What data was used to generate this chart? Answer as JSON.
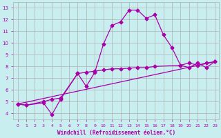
{
  "title": "",
  "xlabel": "Windchill (Refroidissement éolien,°C)",
  "background_color": "#c8eef0",
  "grid_color": "#b0b0b0",
  "line_color": "#aa00aa",
  "xlim": [
    -0.5,
    23.5
  ],
  "ylim": [
    3.5,
    13.5
  ],
  "xticks": [
    0,
    1,
    2,
    3,
    4,
    5,
    6,
    7,
    8,
    9,
    10,
    11,
    12,
    13,
    14,
    15,
    16,
    17,
    18,
    19,
    20,
    21,
    22,
    23
  ],
  "yticks": [
    4,
    5,
    6,
    7,
    8,
    9,
    10,
    11,
    12,
    13
  ],
  "series1_x": [
    0,
    1,
    3,
    4,
    5,
    7,
    8,
    9,
    10,
    11,
    12,
    13,
    14,
    15,
    16,
    17,
    18,
    19,
    20,
    21,
    22,
    23
  ],
  "series1_y": [
    4.8,
    4.7,
    4.9,
    3.9,
    5.2,
    7.4,
    6.3,
    7.5,
    9.9,
    11.5,
    11.8,
    12.8,
    12.8,
    12.1,
    12.4,
    10.7,
    9.6,
    8.1,
    7.9,
    8.3,
    7.9,
    8.4
  ],
  "series2_x": [
    0,
    1,
    3,
    4,
    5,
    7,
    8,
    9,
    10,
    11,
    12,
    13,
    14,
    15,
    16,
    19,
    20,
    21,
    22,
    23
  ],
  "series2_y": [
    4.8,
    4.7,
    5.0,
    5.2,
    5.3,
    7.4,
    7.5,
    7.6,
    7.7,
    7.8,
    7.8,
    7.85,
    7.9,
    7.9,
    8.0,
    8.1,
    8.3,
    8.1,
    8.3,
    8.4
  ],
  "series3_x": [
    0,
    23
  ],
  "series3_y": [
    4.8,
    8.4
  ],
  "marker": "D",
  "marker_size": 2.5,
  "linewidth": 0.9
}
